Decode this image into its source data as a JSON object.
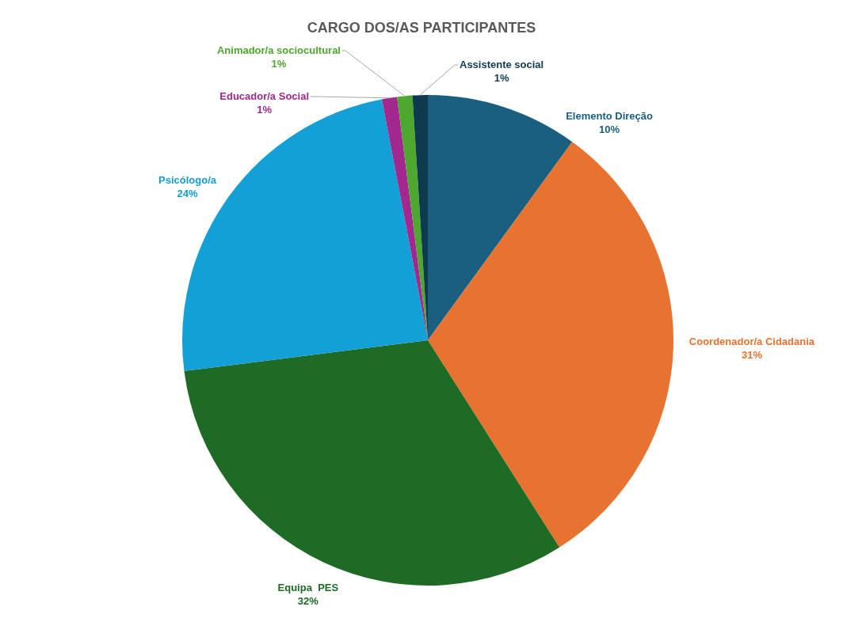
{
  "chart_data": {
    "type": "pie",
    "title": "CARGO DOS/AS PARTICIPANTES",
    "categories": [
      "Elemento Direção",
      "Coordenador/a Cidadania",
      "Equipa  PES",
      "Psicólogo/a",
      "Educador/a Social",
      "Animador/a sociocultural",
      "Assistente social"
    ],
    "values": [
      10,
      31,
      32,
      24,
      1,
      1,
      1
    ],
    "value_labels": [
      "10%",
      "31%",
      "32%",
      "24%",
      "1%",
      "1%",
      "1%"
    ],
    "colors": [
      "#1a5f80",
      "#e8722f",
      "#1d6b24",
      "#12a0d7",
      "#a0288f",
      "#4ea72e",
      "#0e3a4f"
    ]
  }
}
